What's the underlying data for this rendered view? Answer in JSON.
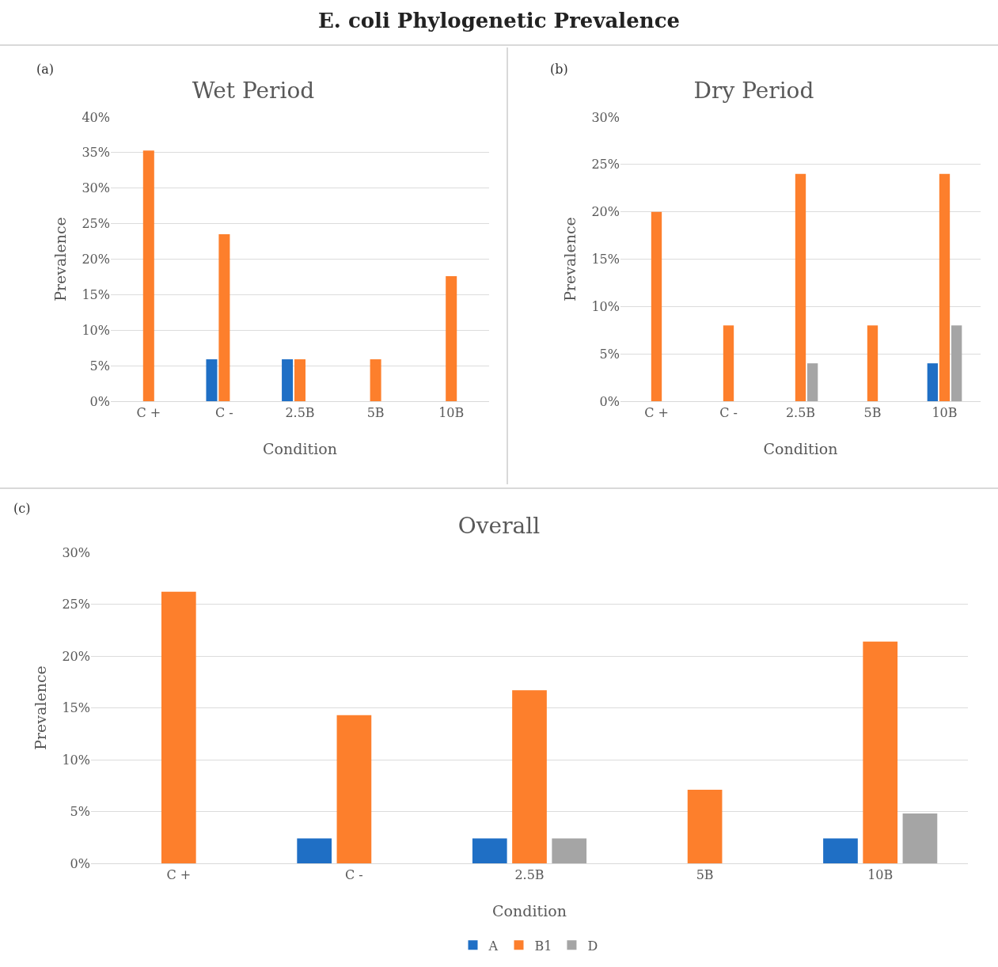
{
  "chart_data": [
    {
      "type": "bar",
      "title": "E. coli Phylogenetic Prevalence",
      "subtitle": "Wet Period",
      "xlabel": "Condition",
      "ylabel": "Prevalence",
      "annotations": [
        "(a)"
      ],
      "categories": [
        "C +",
        "C -",
        "2.5B",
        "5B",
        "10B"
      ],
      "series": [
        {
          "color": "#1f6fc5",
          "values": [
            0,
            5.9,
            5.9,
            0,
            0
          ]
        },
        {
          "color": "#fd7f2c",
          "values": [
            35.3,
            23.5,
            5.9,
            5.9,
            17.6
          ]
        },
        {
          "color": "#a5a5a5",
          "values": [
            0,
            0,
            0,
            0,
            0
          ]
        }
      ],
      "ylim": [
        0,
        40
      ],
      "yticks": [
        {
          "value": 0,
          "label": "0%"
        },
        {
          "value": 5,
          "label": "5%"
        },
        {
          "value": 10,
          "label": "10%"
        },
        {
          "value": 15,
          "label": "15%"
        },
        {
          "value": 20,
          "label": "20%"
        },
        {
          "value": 25,
          "label": "25%"
        },
        {
          "value": 30,
          "label": "30%"
        },
        {
          "value": 35,
          "label": "35%"
        },
        {
          "value": 40,
          "label": "40%"
        }
      ],
      "grid": "y",
      "legend": false
    },
    {
      "type": "bar",
      "title": "Dry Period",
      "xlabel": "Condition",
      "ylabel": "Prevalence",
      "annotations": [
        "(b)"
      ],
      "categories": [
        "C +",
        "C -",
        "2.5B",
        "5B",
        "10B"
      ],
      "series": [
        {
          "color": "#1f6fc5",
          "values": [
            0,
            0,
            0,
            0,
            4
          ]
        },
        {
          "color": "#fd7f2c",
          "values": [
            20,
            8,
            24,
            8,
            24
          ]
        },
        {
          "color": "#a5a5a5",
          "values": [
            0,
            0,
            4,
            0,
            8
          ]
        }
      ],
      "ylim": [
        0,
        30
      ],
      "yticks": [
        {
          "value": 0,
          "label": "0%"
        },
        {
          "value": 5,
          "label": "5%"
        },
        {
          "value": 10,
          "label": "10%"
        },
        {
          "value": 15,
          "label": "15%"
        },
        {
          "value": 20,
          "label": "20%"
        },
        {
          "value": 25,
          "label": "25%"
        },
        {
          "value": 30,
          "label": "30%"
        }
      ],
      "grid": "y",
      "legend": false
    },
    {
      "type": "bar",
      "title": "Overall",
      "xlabel": "Condition",
      "ylabel": "Prevalence",
      "annotations": [
        "(c)"
      ],
      "categories": [
        "C +",
        "C -",
        "2.5B",
        "5B",
        "10B"
      ],
      "series": [
        {
          "name": "A",
          "color": "#1f6fc5",
          "values": [
            0,
            2.4,
            2.4,
            0,
            2.4
          ]
        },
        {
          "name": "B1",
          "color": "#fd7f2c",
          "values": [
            26.2,
            14.3,
            16.7,
            7.1,
            21.4
          ]
        },
        {
          "name": "D",
          "color": "#a5a5a5",
          "values": [
            0,
            0,
            2.4,
            0,
            4.8
          ]
        }
      ],
      "ylim": [
        0,
        30
      ],
      "yticks": [
        {
          "value": 0,
          "label": "0%"
        },
        {
          "value": 5,
          "label": "5%"
        },
        {
          "value": 10,
          "label": "10%"
        },
        {
          "value": 15,
          "label": "15%"
        },
        {
          "value": 20,
          "label": "20%"
        },
        {
          "value": 25,
          "label": "25%"
        },
        {
          "value": 30,
          "label": "30%"
        }
      ],
      "grid": "y",
      "legend": "bottom"
    }
  ]
}
